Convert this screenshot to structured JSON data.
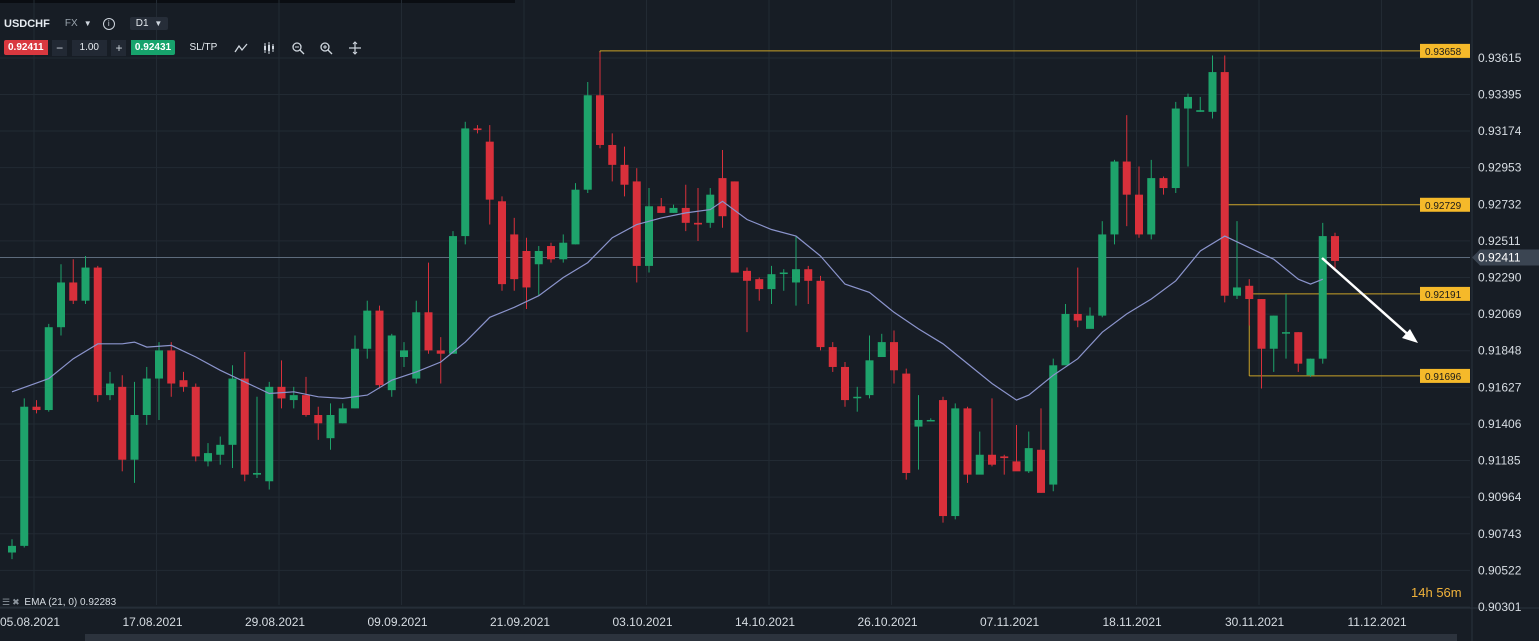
{
  "header": {
    "symbol": "USDCHF",
    "market": "FX",
    "timeframe": "D1",
    "bid": "0.92411",
    "quantity": "1.00",
    "ask": "0.92431",
    "sltp_label": "SL/TP",
    "minus": "−",
    "plus": "+"
  },
  "indicator_legend": "EMA (21, 0) 0.92283",
  "countdown": {
    "hours": "14h",
    "minutes": "56m"
  },
  "colors": {
    "bull": "#1ea36b",
    "bear": "#d9303b",
    "ema": "#8b94cc",
    "level": "#c9a227",
    "level_label_bg": "#f5b92a",
    "background": "#171d25",
    "grid": "#222a33",
    "current_price_line": "#5d6b7c",
    "arrow": "#ffffff"
  },
  "chart_data": {
    "type": "candlestick",
    "symbol": "USDCHF",
    "timeframe": "D1",
    "y_ticks": [
      "0.93615",
      "0.93395",
      "0.93174",
      "0.92953",
      "0.92732",
      "0.92511",
      "0.92290",
      "0.92069",
      "0.91848",
      "0.91627",
      "0.91406",
      "0.91185",
      "0.90964",
      "0.90743",
      "0.90522",
      "0.90301"
    ],
    "ylim": [
      0.9028,
      0.9376
    ],
    "x_ticks": [
      {
        "label": "05.08.2021",
        "index": 0
      },
      {
        "label": "17.08.2021",
        "index": 10
      },
      {
        "label": "29.08.2021",
        "index": 20
      },
      {
        "label": "09.09.2021",
        "index": 30
      },
      {
        "label": "21.09.2021",
        "index": 40
      },
      {
        "label": "03.10.2021",
        "index": 50
      },
      {
        "label": "14.10.2021",
        "index": 60
      },
      {
        "label": "26.10.2021",
        "index": 70
      },
      {
        "label": "07.11.2021",
        "index": 80
      },
      {
        "label": "18.11.2021",
        "index": 90
      },
      {
        "label": "30.11.2021",
        "index": 100
      },
      {
        "label": "11.12.2021",
        "index": 110
      }
    ],
    "current_price": "0.92411",
    "levels": [
      {
        "label": "0.93658",
        "value": 0.93658,
        "from_index": 48
      },
      {
        "label": "0.92729",
        "value": 0.92729,
        "from_index": 99
      },
      {
        "label": "0.92191",
        "value": 0.92191,
        "from_index": 101
      },
      {
        "label": "0.91696",
        "value": 0.91696,
        "from_index": 101
      }
    ],
    "candles": [
      [
        0.9063,
        0.9067,
        0.9059,
        0.9071
      ],
      [
        0.9067,
        0.9151,
        0.9066,
        0.9156
      ],
      [
        0.9151,
        0.9149,
        0.9147,
        0.9155
      ],
      [
        0.9149,
        0.9199,
        0.9148,
        0.9201
      ],
      [
        0.9199,
        0.9226,
        0.9194,
        0.9237
      ],
      [
        0.9226,
        0.9215,
        0.9213,
        0.924
      ],
      [
        0.9215,
        0.9235,
        0.9213,
        0.9242
      ],
      [
        0.9235,
        0.9158,
        0.9154,
        0.9236
      ],
      [
        0.9158,
        0.9165,
        0.9155,
        0.9172
      ],
      [
        0.9163,
        0.9119,
        0.9112,
        0.917
      ],
      [
        0.9119,
        0.9146,
        0.9105,
        0.9166
      ],
      [
        0.9146,
        0.9168,
        0.914,
        0.9175
      ],
      [
        0.9168,
        0.9185,
        0.9143,
        0.919
      ],
      [
        0.9185,
        0.9165,
        0.9157,
        0.919
      ],
      [
        0.9167,
        0.9163,
        0.916,
        0.9172
      ],
      [
        0.9163,
        0.9121,
        0.9118,
        0.9165
      ],
      [
        0.9118,
        0.9123,
        0.9115,
        0.9129
      ],
      [
        0.9122,
        0.9128,
        0.9116,
        0.9133
      ],
      [
        0.9128,
        0.9168,
        0.9114,
        0.9176
      ],
      [
        0.9168,
        0.911,
        0.9106,
        0.9184
      ],
      [
        0.911,
        0.9111,
        0.9108,
        0.9157
      ],
      [
        0.9106,
        0.9163,
        0.9101,
        0.9166
      ],
      [
        0.9163,
        0.9156,
        0.915,
        0.9179
      ],
      [
        0.9155,
        0.9158,
        0.915,
        0.9163
      ],
      [
        0.9158,
        0.9146,
        0.9145,
        0.9169
      ],
      [
        0.9146,
        0.9141,
        0.9131,
        0.9151
      ],
      [
        0.9132,
        0.9146,
        0.9125,
        0.9153
      ],
      [
        0.9141,
        0.915,
        0.9141,
        0.9153
      ],
      [
        0.915,
        0.9186,
        0.915,
        0.9194
      ],
      [
        0.9186,
        0.9209,
        0.918,
        0.9215
      ],
      [
        0.9209,
        0.9164,
        0.9162,
        0.9212
      ],
      [
        0.9161,
        0.9194,
        0.9157,
        0.9195
      ],
      [
        0.9181,
        0.9185,
        0.9175,
        0.919
      ],
      [
        0.9168,
        0.9208,
        0.9165,
        0.9215
      ],
      [
        0.9208,
        0.9185,
        0.9183,
        0.9238
      ],
      [
        0.9185,
        0.9183,
        0.9165,
        0.9193
      ],
      [
        0.9183,
        0.9254,
        0.9183,
        0.9257
      ],
      [
        0.9254,
        0.9319,
        0.9249,
        0.9323
      ],
      [
        0.9319,
        0.9318,
        0.9316,
        0.9321
      ],
      [
        0.9311,
        0.9276,
        0.9261,
        0.9321
      ],
      [
        0.9275,
        0.9225,
        0.9221,
        0.9278
      ],
      [
        0.9255,
        0.9228,
        0.9221,
        0.9265
      ],
      [
        0.9245,
        0.9223,
        0.921,
        0.9253
      ],
      [
        0.9237,
        0.9245,
        0.9218,
        0.9248
      ],
      [
        0.9248,
        0.924,
        0.9238,
        0.925
      ],
      [
        0.924,
        0.925,
        0.9238,
        0.9255
      ],
      [
        0.9249,
        0.9282,
        0.9249,
        0.9286
      ],
      [
        0.9282,
        0.9339,
        0.928,
        0.9347
      ],
      [
        0.9339,
        0.9309,
        0.9307,
        0.9365
      ],
      [
        0.9309,
        0.9297,
        0.9287,
        0.9316
      ],
      [
        0.9297,
        0.9285,
        0.9278,
        0.9308
      ],
      [
        0.9287,
        0.9236,
        0.9226,
        0.9295
      ],
      [
        0.9236,
        0.9272,
        0.9232,
        0.9283
      ],
      [
        0.9272,
        0.9268,
        0.9268,
        0.9277
      ],
      [
        0.9268,
        0.9271,
        0.9268,
        0.9273
      ],
      [
        0.9271,
        0.9262,
        0.9257,
        0.9285
      ],
      [
        0.9262,
        0.9261,
        0.9251,
        0.9283
      ],
      [
        0.9262,
        0.9279,
        0.9259,
        0.9283
      ],
      [
        0.9289,
        0.9266,
        0.9259,
        0.9306
      ],
      [
        0.9287,
        0.9232,
        0.9232,
        0.9287
      ],
      [
        0.9233,
        0.9227,
        0.9196,
        0.9235
      ],
      [
        0.9228,
        0.9222,
        0.9215,
        0.9229
      ],
      [
        0.9222,
        0.9231,
        0.9213,
        0.9236
      ],
      [
        0.9232,
        0.9232,
        0.9221,
        0.9234
      ],
      [
        0.9226,
        0.9234,
        0.9212,
        0.9254
      ],
      [
        0.9234,
        0.9227,
        0.9213,
        0.9236
      ],
      [
        0.9227,
        0.9187,
        0.9185,
        0.923
      ],
      [
        0.9187,
        0.9175,
        0.9172,
        0.919
      ],
      [
        0.9175,
        0.9155,
        0.9151,
        0.9178
      ],
      [
        0.9157,
        0.9157,
        0.9148,
        0.9163
      ],
      [
        0.9158,
        0.9179,
        0.9156,
        0.9194
      ],
      [
        0.9181,
        0.919,
        0.9181,
        0.9195
      ],
      [
        0.919,
        0.9173,
        0.9165,
        0.9197
      ],
      [
        0.9171,
        0.9111,
        0.9107,
        0.9174
      ],
      [
        0.9139,
        0.9143,
        0.9113,
        0.9158
      ],
      [
        0.9143,
        0.9143,
        0.9143,
        0.9144
      ],
      [
        0.9155,
        0.9085,
        0.9081,
        0.9157
      ],
      [
        0.9085,
        0.915,
        0.9083,
        0.9153
      ],
      [
        0.915,
        0.911,
        0.9105,
        0.9151
      ],
      [
        0.911,
        0.9122,
        0.9111,
        0.9136
      ],
      [
        0.9122,
        0.9116,
        0.9115,
        0.9156
      ],
      [
        0.9121,
        0.912,
        0.911,
        0.9122
      ],
      [
        0.9118,
        0.9112,
        0.9113,
        0.914
      ],
      [
        0.9112,
        0.9126,
        0.9111,
        0.9136
      ],
      [
        0.9125,
        0.9099,
        0.9099,
        0.915
      ],
      [
        0.9104,
        0.9176,
        0.91,
        0.918
      ],
      [
        0.9176,
        0.9207,
        0.9176,
        0.9213
      ],
      [
        0.9207,
        0.9203,
        0.9199,
        0.9235
      ],
      [
        0.9198,
        0.9206,
        0.9199,
        0.9211
      ],
      [
        0.9206,
        0.9255,
        0.9205,
        0.9263
      ],
      [
        0.9255,
        0.9299,
        0.9249,
        0.93
      ],
      [
        0.9299,
        0.9279,
        0.926,
        0.9327
      ],
      [
        0.9279,
        0.9255,
        0.9253,
        0.9296
      ],
      [
        0.9255,
        0.9289,
        0.9252,
        0.93
      ],
      [
        0.9289,
        0.9283,
        0.9279,
        0.929
      ],
      [
        0.9283,
        0.9331,
        0.928,
        0.9335
      ],
      [
        0.9331,
        0.9338,
        0.9296,
        0.934
      ],
      [
        0.9329,
        0.933,
        0.9329,
        0.9338
      ],
      [
        0.9329,
        0.9353,
        0.9325,
        0.9363
      ],
      [
        0.9353,
        0.9218,
        0.9214,
        0.9363
      ],
      [
        0.9218,
        0.9223,
        0.9216,
        0.9263
      ],
      [
        0.9224,
        0.9216,
        0.92,
        0.9228
      ],
      [
        0.9216,
        0.9186,
        0.9162,
        0.9216
      ],
      [
        0.9186,
        0.9206,
        0.9172,
        0.9206
      ],
      [
        0.9196,
        0.9196,
        0.918,
        0.9219
      ],
      [
        0.9196,
        0.9177,
        0.9172,
        0.9196
      ],
      [
        0.917,
        0.918,
        0.9169,
        0.918
      ],
      [
        0.918,
        0.9254,
        0.9177,
        0.9262
      ],
      [
        0.9254,
        0.9239,
        0.9233,
        0.9256
      ]
    ],
    "ema": [
      [
        0,
        0.916
      ],
      [
        3,
        0.9168
      ],
      [
        5,
        0.918
      ],
      [
        7,
        0.9189
      ],
      [
        9,
        0.9189
      ],
      [
        10,
        0.919
      ],
      [
        11,
        0.9187
      ],
      [
        13,
        0.9188
      ],
      [
        15,
        0.9181
      ],
      [
        17,
        0.9173
      ],
      [
        19,
        0.9166
      ],
      [
        21,
        0.9159
      ],
      [
        23,
        0.916
      ],
      [
        25,
        0.9157
      ],
      [
        27,
        0.9156
      ],
      [
        29,
        0.9158
      ],
      [
        31,
        0.9167
      ],
      [
        33,
        0.9172
      ],
      [
        35,
        0.9178
      ],
      [
        37,
        0.919
      ],
      [
        39,
        0.9205
      ],
      [
        41,
        0.9211
      ],
      [
        43,
        0.9218
      ],
      [
        45,
        0.9229
      ],
      [
        47,
        0.9238
      ],
      [
        49,
        0.9253
      ],
      [
        51,
        0.9261
      ],
      [
        53,
        0.9265
      ],
      [
        55,
        0.9268
      ],
      [
        57,
        0.927
      ],
      [
        58,
        0.9275
      ],
      [
        60,
        0.9264
      ],
      [
        62,
        0.9258
      ],
      [
        64,
        0.9254
      ],
      [
        66,
        0.9242
      ],
      [
        68,
        0.9225
      ],
      [
        70,
        0.922
      ],
      [
        72,
        0.9208
      ],
      [
        74,
        0.9198
      ],
      [
        76,
        0.9189
      ],
      [
        78,
        0.9177
      ],
      [
        80,
        0.9165
      ],
      [
        82,
        0.9155
      ],
      [
        83,
        0.9158
      ],
      [
        85,
        0.917
      ],
      [
        87,
        0.918
      ],
      [
        89,
        0.9196
      ],
      [
        91,
        0.9207
      ],
      [
        93,
        0.9216
      ],
      [
        95,
        0.9227
      ],
      [
        97,
        0.9245
      ],
      [
        99,
        0.9254
      ],
      [
        101,
        0.9247
      ],
      [
        103,
        0.924
      ],
      [
        105,
        0.9228
      ],
      [
        106,
        0.9225
      ],
      [
        107,
        0.9228
      ]
    ]
  }
}
